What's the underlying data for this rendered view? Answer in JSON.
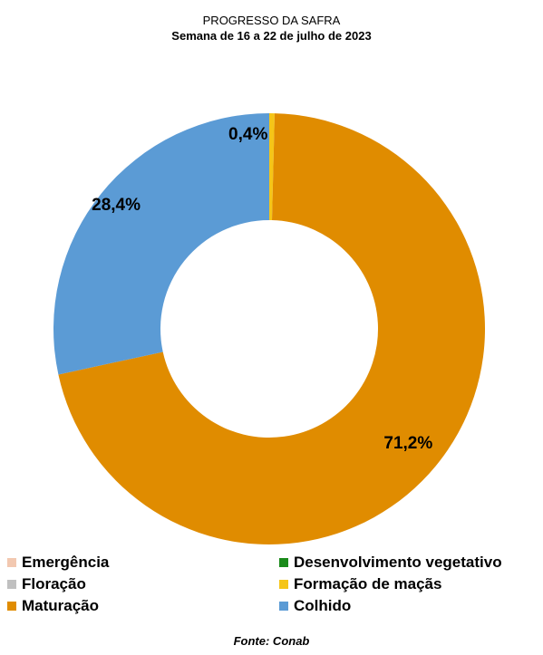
{
  "chart_data": {
    "type": "pie",
    "style": "donut",
    "title": "PROGRESSO DA SAFRA",
    "subtitle": "Semana de 16 a 22 de julho de 2023",
    "source": "Fonte: Conab",
    "legend_position": "bottom",
    "series": [
      {
        "name": "Emergência",
        "value": 0,
        "label": "",
        "color": "#f2c8b0"
      },
      {
        "name": "Desenvolvimento vegetativo",
        "value": 0,
        "label": "",
        "color": "#1a8a1a"
      },
      {
        "name": "Floração",
        "value": 0,
        "label": "",
        "color": "#c0c0c0"
      },
      {
        "name": "Formação de maçãs",
        "value": 0.4,
        "label": "0,4%",
        "color": "#f5c518"
      },
      {
        "name": "Maturação",
        "value": 71.2,
        "label": "71,2%",
        "color": "#e08c00"
      },
      {
        "name": "Colhido",
        "value": 28.4,
        "label": "28,4%",
        "color": "#5b9bd5"
      }
    ]
  }
}
